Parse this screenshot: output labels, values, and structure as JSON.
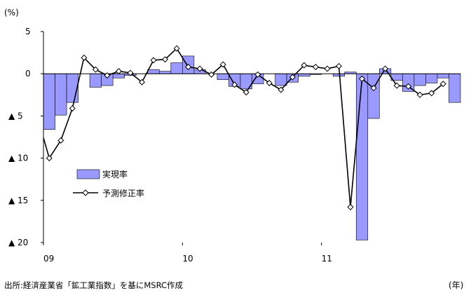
{
  "chart_data": {
    "type": "bar",
    "title": "",
    "unit_label": "(%)",
    "x_unit_label": "(年)",
    "source": "出所:経済産業省「鉱工業指数」を基にMSRC作成",
    "ylim": [
      -20,
      5
    ],
    "y_ticks": [
      {
        "value": 5,
        "label": "5"
      },
      {
        "value": 0,
        "label": "0"
      },
      {
        "value": -5,
        "label": "▲ 5"
      },
      {
        "value": -10,
        "label": "▲ 10"
      },
      {
        "value": -15,
        "label": "▲ 15"
      },
      {
        "value": -20,
        "label": "▲ 20"
      }
    ],
    "x_ticks": [
      {
        "index": 0,
        "label": "09"
      },
      {
        "index": 12,
        "label": "10"
      },
      {
        "index": 24,
        "label": "11"
      }
    ],
    "months_count": 36,
    "legend": {
      "position": "left-center"
    },
    "series": [
      {
        "name": "実現率",
        "kind": "bar",
        "color": "#9999ff",
        "values": [
          -6.6,
          -4.9,
          -3.4,
          0,
          -1.6,
          -1.4,
          -0.5,
          -0.2,
          0,
          0.5,
          0.3,
          1.3,
          2.1,
          0.5,
          0,
          -0.7,
          -1.5,
          -1.8,
          -1.2,
          0,
          -1.4,
          -1.0,
          -0.3,
          -0.1,
          0,
          -0.3,
          0.2,
          -19.7,
          -5.3,
          0.6,
          -0.8,
          -2.1,
          -1.4,
          -1.1,
          -0.5,
          -3.4
        ]
      },
      {
        "name": "予測修正率",
        "kind": "line",
        "color": "#000000",
        "values": [
          -10.0,
          -7.9,
          -4.1,
          1.9,
          0.5,
          -0.2,
          0.3,
          0.1,
          -1.0,
          1.6,
          1.7,
          3.0,
          0.8,
          0.6,
          -0.1,
          1.1,
          -1.3,
          -2.2,
          -0.1,
          -1.1,
          -1.9,
          -0.4,
          1.0,
          0.8,
          0.6,
          0.9,
          -15.8,
          -0.6,
          -1.7,
          0.6,
          -1.4,
          -1.5,
          -2.5,
          -2.3,
          -1.2
        ],
        "start_index": 0.5,
        "left_edge_value": -7.6
      }
    ]
  }
}
